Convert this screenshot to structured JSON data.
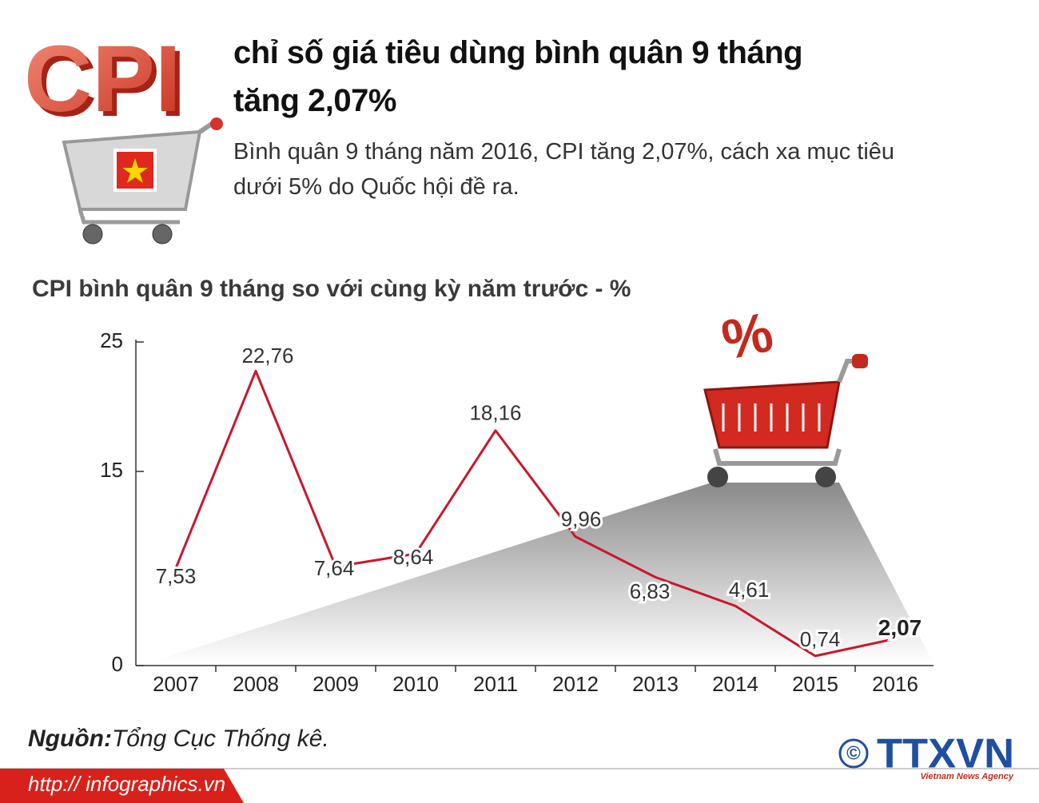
{
  "header": {
    "logo": "CPI",
    "title": [
      "chỉ số giá tiêu dùng bình quân 9 tháng",
      "tăng 2,07%"
    ],
    "subtitle": [
      "Bình quân 9 tháng năm 2016, CPI tăng 2,07%, cách xa mục tiêu",
      "dưới 5% do Quốc hội đề ra."
    ]
  },
  "illustration": {
    "label": "%"
  },
  "chart_data": {
    "type": "line",
    "title": "CPI bình quân 9 tháng so với cùng kỳ năm trước - %",
    "categories": [
      "2007",
      "2008",
      "2009",
      "2010",
      "2011",
      "2012",
      "2013",
      "2014",
      "2015",
      "2016"
    ],
    "values": [
      7.53,
      22.76,
      7.64,
      8.64,
      18.16,
      9.96,
      6.83,
      4.61,
      0.74,
      2.07
    ],
    "value_labels": [
      "7,53",
      "22,76",
      "7,64",
      "8,64",
      "18,16",
      "9,96",
      "6,83",
      "4,61",
      "0,74",
      "2,07"
    ],
    "color": "#c8182b",
    "ylim": [
      0,
      25
    ],
    "yticks": [
      0,
      15,
      25
    ],
    "grid": false
  },
  "footer": {
    "source_label": "Nguồn:",
    "source": "Tổng Cục Thống kê.",
    "url": "http:// infographics.vn",
    "copyright": "©",
    "agency": "TTXVN",
    "agency_sub": "Vietnam News Agency"
  }
}
